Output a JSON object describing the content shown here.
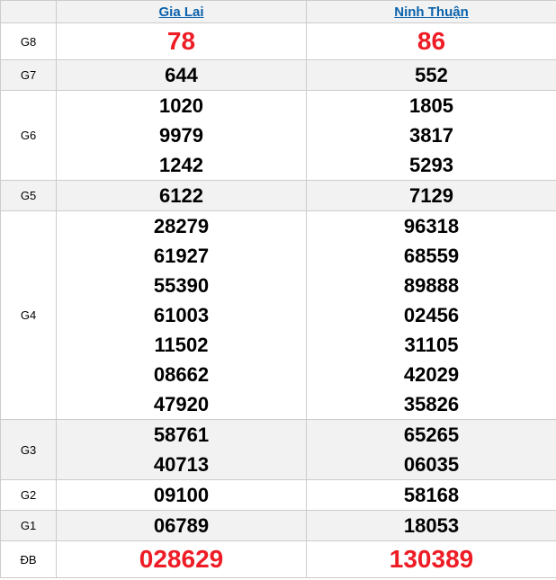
{
  "table": {
    "columns": [
      {
        "label": ""
      },
      {
        "label": "Gia Lai"
      },
      {
        "label": "Ninh Thuận"
      }
    ],
    "rows": [
      {
        "id": "g8",
        "label": "G8",
        "special": true,
        "gia_lai": [
          "78"
        ],
        "ninh_thuan": [
          "86"
        ]
      },
      {
        "id": "g7",
        "label": "G7",
        "special": false,
        "gia_lai": [
          "644"
        ],
        "ninh_thuan": [
          "552"
        ]
      },
      {
        "id": "g6",
        "label": "G6",
        "special": false,
        "gia_lai": [
          "1020",
          "9979",
          "1242"
        ],
        "ninh_thuan": [
          "1805",
          "3817",
          "5293"
        ]
      },
      {
        "id": "g5",
        "label": "G5",
        "special": false,
        "gia_lai": [
          "6122"
        ],
        "ninh_thuan": [
          "7129"
        ]
      },
      {
        "id": "g4",
        "label": "G4",
        "special": false,
        "gia_lai": [
          "28279",
          "61927",
          "55390",
          "61003",
          "11502",
          "08662",
          "47920"
        ],
        "ninh_thuan": [
          "96318",
          "68559",
          "89888",
          "02456",
          "31105",
          "42029",
          "35826"
        ]
      },
      {
        "id": "g3",
        "label": "G3",
        "special": false,
        "gia_lai": [
          "58761",
          "40713"
        ],
        "ninh_thuan": [
          "65265",
          "06035"
        ]
      },
      {
        "id": "g2",
        "label": "G2",
        "special": false,
        "gia_lai": [
          "09100"
        ],
        "ninh_thuan": [
          "58168"
        ]
      },
      {
        "id": "g1",
        "label": "G1",
        "special": false,
        "gia_lai": [
          "06789"
        ],
        "ninh_thuan": [
          "18053"
        ]
      },
      {
        "id": "db",
        "label": "ĐB",
        "special": true,
        "gia_lai": [
          "028629"
        ],
        "ninh_thuan": [
          "130389"
        ]
      }
    ],
    "colors": {
      "special_number": "#ee1c25",
      "link": "#0a62ac",
      "stripe": "#f2f2f2",
      "border": "#cccccc"
    }
  }
}
